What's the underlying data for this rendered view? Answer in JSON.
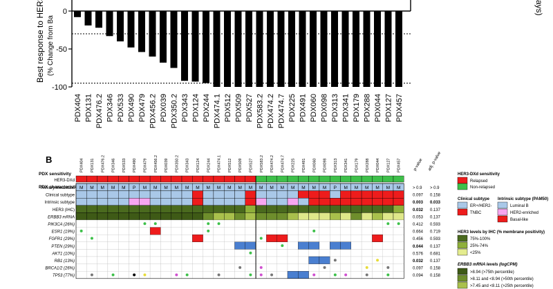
{
  "chart_data": {
    "type": "bar",
    "ylabel": "Best response to HER3-DXd",
    "ylabel_sub": "(% Change from Ba",
    "right_label_fragment": "ays)",
    "ylim": [
      -100,
      0
    ],
    "yticks": [
      "0",
      "-50",
      "-100"
    ],
    "reference_lines": [
      -30,
      -95
    ],
    "categories": [
      "PDX404",
      "PDX131",
      "PDX476.2",
      "PDX346",
      "PDX533",
      "PDX490",
      "PDX479",
      "PDX456.2",
      "PDX039",
      "PDX350.2",
      "PDX343",
      "PDX124",
      "PDX244",
      "PDX474.1",
      "PDX512",
      "PDX509",
      "PDX527",
      "PDX583.2",
      "PDX474.2",
      "PDX474.7",
      "PDX225",
      "PDX491",
      "PDX060",
      "PDX098",
      "PDX313",
      "PDX341",
      "PDX179",
      "PDX288",
      "PDX044",
      "PDX127",
      "PDX457"
    ],
    "values": [
      -8,
      -19,
      -22,
      -33,
      -40,
      -48,
      -54,
      -60,
      -68,
      -75,
      -92,
      -93,
      -95,
      -100,
      -100,
      -100,
      -100,
      -100,
      -100,
      -100,
      -100,
      -100,
      -100,
      -100,
      -100,
      -100,
      -100,
      -100,
      -100,
      -100,
      -100
    ],
    "error": [
      0,
      14,
      22,
      18,
      20,
      12,
      12,
      10,
      10,
      8,
      2,
      1,
      0,
      0,
      0,
      0,
      0,
      0,
      0,
      0,
      0,
      0,
      0,
      0,
      0,
      0,
      0,
      0,
      0,
      0,
      0
    ]
  },
  "panelB": {
    "letter": "B",
    "sensitivity_header": "PDX sensitivity",
    "sensitivity_row": "HER3-DXd",
    "characteristics_header": "PDX characteristics",
    "rows": [
      "Primary/Metastatic",
      "Clinical subtype",
      "Intrinsic subtype",
      "HER3 (IHC)",
      "ERBB3 mRNA",
      "PIK3CA (26%)",
      "ESR1 (19%)",
      "FGFR1 (29%)",
      "PTEN (29%)",
      "AKT1 (10%)",
      "RB1 (13%)",
      "BRCA1/2 (26%)",
      "TP53 (77%)"
    ],
    "pm_values": [
      "M",
      "M",
      "M",
      "M",
      "M",
      "P",
      "M",
      "M",
      "M",
      "M",
      "M",
      "M",
      "M",
      "M",
      "M",
      "M",
      "M",
      "M",
      "M",
      "M",
      "M",
      "M",
      "M",
      "M",
      "P",
      "M",
      "M",
      "M",
      "M",
      "M",
      "M"
    ],
    "pvalue_header": "p-value",
    "adj_pvalue_header": "adj. p-value",
    "pvalues": [
      "> 0.9",
      "0.097",
      "0.003",
      "0.032",
      "0.053",
      "0.412",
      "0.664",
      "0.456",
      "0.044",
      "0.576",
      "0.032",
      "0.097",
      "0.094"
    ],
    "adj_pvalues": [
      "> 0.9",
      "0.158",
      "0.033",
      "0.137",
      "0.137",
      "0.593",
      "0.719",
      "0.593",
      "0.137",
      "0.681",
      "0.137",
      "0.158",
      "0.158"
    ],
    "relapsed_count": 17
  },
  "legend": {
    "sensitivity_title": "HER3-DXd sensitivity",
    "relapsed": "Relapsed",
    "non_relapsed": "Non-relapsed",
    "clinical_title": "Clinical subtype",
    "clinical_items": [
      "ER+/HER2-",
      "TNBC"
    ],
    "intrinsic_title": "Intrinsic subtype (PAM50)",
    "intrinsic_items": [
      "Luminal B",
      "HER2-enriched",
      "Basal-like"
    ],
    "her3_title": "HER3 levels by IHC (% membrane positivity)",
    "her3_items": [
      "75%-100%",
      "25%-74%",
      "<25%"
    ],
    "erbb3_title": "ERBB3 mRNA levels (logCPM)",
    "erbb3_items": [
      ">8.94 (>75th percentile)",
      ">8.11 and <8.94 (>50th percentile)",
      ">7.45 and <8.11 (>25th percentile)"
    ]
  },
  "colors": {
    "relapsed": "#ee1c1c",
    "non_relapsed": "#3ec04a",
    "er_her2neg": "#a9c8e8",
    "tnbc": "#ee1c1c",
    "luminal_b": "#a9c8e8",
    "her2_enriched": "#f7a6f0",
    "basal": "#ee1c1c",
    "her3_high": "#4a6a1e",
    "her3_mid": "#8fb03a",
    "her3_low": "#e4ec8e",
    "erbb3_1": "#3e5a16",
    "erbb3_2": "#6e8e2c",
    "erbb3_3": "#a9c04c",
    "erbb3_4": "#dfe88a",
    "alt_red": "#ee1c1c",
    "alt_blue": "#4a7fd0"
  }
}
